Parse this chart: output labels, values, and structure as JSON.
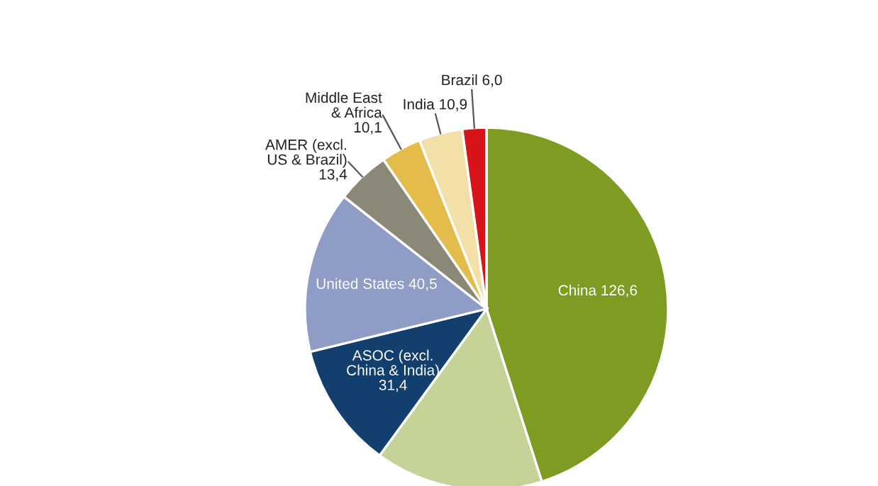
{
  "chart_data": {
    "type": "pie",
    "categories": [
      "China",
      null,
      "ASOC (excl.\nChina & India)",
      "United States",
      "AMER (excl.\nUS & Brazil)",
      "Middle East\n& Africa",
      "India",
      "Brazil"
    ],
    "values": [
      126.6,
      42,
      31.4,
      40.5,
      13.4,
      10.1,
      10.9,
      6.0
    ],
    "value_labels": [
      "126,6",
      null,
      "31,4",
      "40,5",
      "13,4",
      "10,1",
      "10,9",
      "6,0"
    ],
    "colors": [
      "#7f9c22",
      "#c5d298",
      "#123f6e",
      "#8e9cc6",
      "#8c8878",
      "#e3bc4c",
      "#f3dfa8",
      "#d8141a"
    ]
  }
}
